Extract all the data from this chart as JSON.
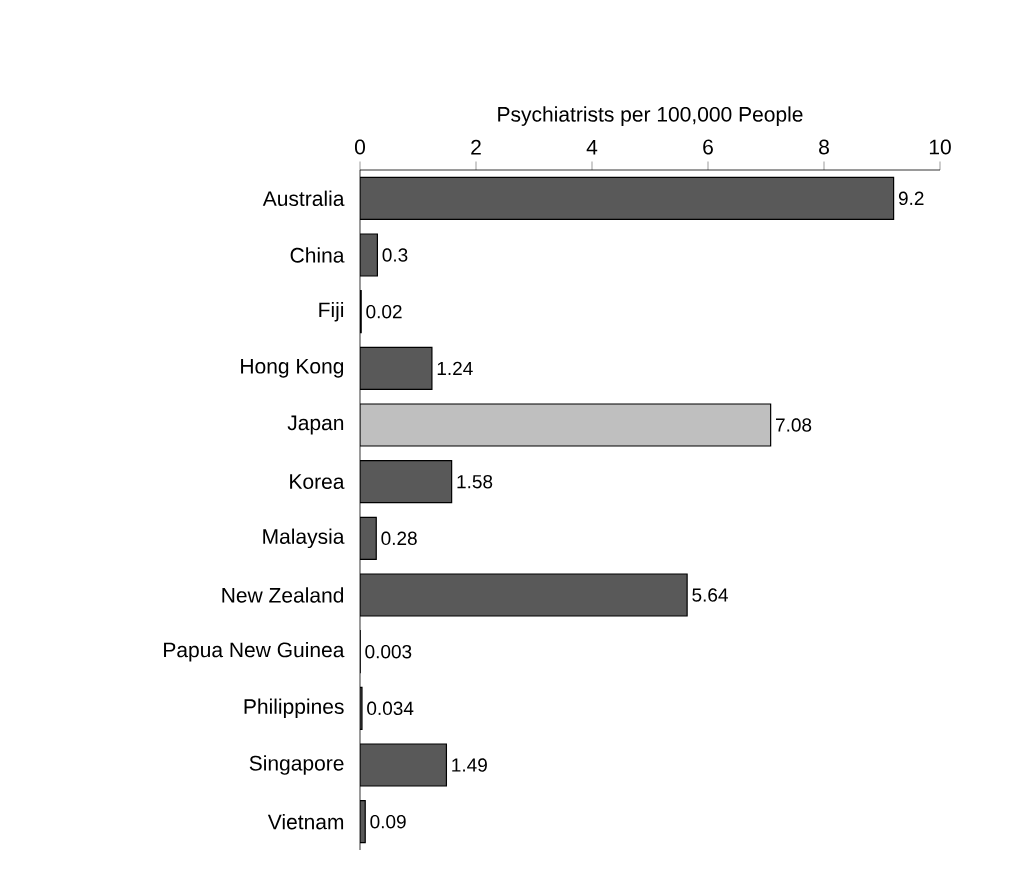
{
  "chart_data": {
    "type": "bar",
    "orientation": "horizontal",
    "xlabel": "Psychiatrists per 100,000 People",
    "categories": [
      "Australia",
      "China",
      "Fiji",
      "Hong Kong",
      "Japan",
      "Korea",
      "Malaysia",
      "New Zealand",
      "Papua New Guinea",
      "Philippines",
      "Singapore",
      "Vietnam"
    ],
    "values": [
      9.2,
      0.3,
      0.02,
      1.24,
      7.08,
      1.58,
      0.28,
      5.64,
      0.003,
      0.034,
      1.49,
      0.09
    ],
    "value_labels": [
      "9.2",
      "0.3",
      "0.02",
      "1.24",
      "7.08",
      "1.58",
      "0.28",
      "5.64",
      "0.003",
      "0.034",
      "1.49",
      "0.09"
    ],
    "colors": [
      "#595959",
      "#595959",
      "#595959",
      "#595959",
      "#bfbfbf",
      "#595959",
      "#595959",
      "#595959",
      "#595959",
      "#595959",
      "#595959",
      "#595959"
    ],
    "xlim": [
      0,
      10
    ],
    "xticks": [
      0,
      2,
      4,
      6,
      8,
      10
    ]
  }
}
